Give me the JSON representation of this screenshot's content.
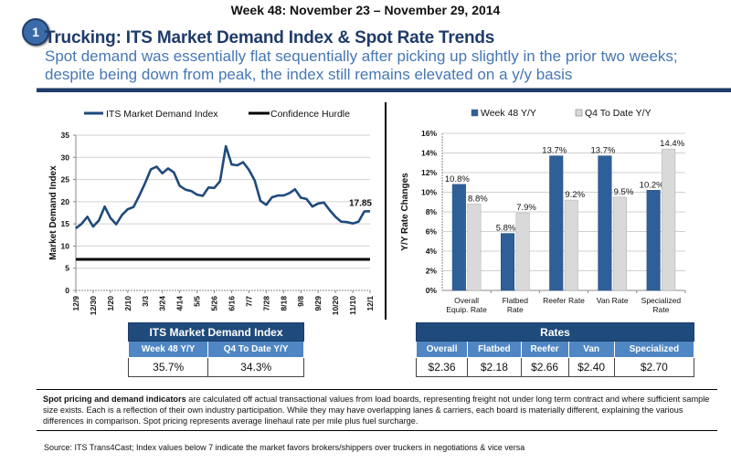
{
  "header": {
    "week": "Week 48: November 23 – November 29, 2014",
    "badge": "1",
    "title": "Trucking: ITS Market Demand Index & Spot Rate Trends",
    "subtitle": "Spot demand was essentially flat sequentially after picking up slightly in the prior two weeks; despite being down from peak, the index still remains elevated on a y/y basis"
  },
  "chart_data": [
    {
      "type": "line",
      "title": "",
      "xlabel": "",
      "ylabel": "Market Demand Index",
      "ylim": [
        0,
        35
      ],
      "yticks": [
        0,
        5,
        10,
        15,
        20,
        25,
        30,
        35
      ],
      "grid": true,
      "legend": "top",
      "x_tick_labels": [
        "12/9",
        "12/30",
        "1/20",
        "2/10",
        "3/3",
        "3/24",
        "4/14",
        "5/5",
        "5/26",
        "6/16",
        "7/7",
        "7/28",
        "8/18",
        "9/8",
        "9/29",
        "10/20",
        "11/10",
        "12/1"
      ],
      "series": [
        {
          "name": "ITS Market Demand Index",
          "color": "#1f4a7c",
          "values": [
            14.0,
            15.0,
            16.6,
            14.4,
            15.8,
            18.9,
            16.3,
            14.9,
            17.0,
            18.3,
            18.8,
            21.4,
            24.2,
            27.3,
            27.9,
            26.4,
            27.5,
            26.6,
            23.6,
            22.7,
            22.4,
            21.6,
            21.3,
            23.2,
            23.1,
            24.6,
            32.5,
            28.4,
            28.2,
            28.9,
            27.2,
            24.8,
            20.2,
            19.3,
            21.0,
            21.4,
            21.4,
            21.9,
            22.8,
            20.9,
            20.6,
            18.9,
            19.6,
            19.8,
            18.1,
            16.6,
            15.5,
            15.4,
            15.1,
            15.5,
            17.8,
            17.85
          ],
          "last_label": "17.85"
        },
        {
          "name": "Confidence Hurdle",
          "color": "#000000",
          "value": 7
        }
      ]
    },
    {
      "type": "bar",
      "title": "",
      "xlabel": "",
      "ylabel": "Y/Y Rate Changes",
      "ylim": [
        0,
        16
      ],
      "yticks": [
        "0%",
        "2%",
        "4%",
        "6%",
        "8%",
        "10%",
        "12%",
        "14%",
        "16%"
      ],
      "grid": true,
      "legend": "top",
      "categories": [
        "Overall Equip. Rate",
        "Flatbed Rate",
        "Reefer  Rate",
        "Van Rate",
        "Specialized Rate"
      ],
      "category_lines": [
        [
          "Overall",
          "Equip. Rate"
        ],
        [
          "Flatbed",
          "Rate"
        ],
        [
          "Reefer  Rate"
        ],
        [
          "Van Rate"
        ],
        [
          "Specialized",
          "Rate"
        ]
      ],
      "series": [
        {
          "name": "Week 48 Y/Y",
          "color": "#2f5f98",
          "values": [
            10.8,
            5.8,
            13.7,
            13.7,
            10.2
          ],
          "labels": [
            "10.8%",
            "5.8%",
            "13.7%",
            "13.7%",
            "10.2%"
          ]
        },
        {
          "name": "Q4 To Date Y/Y",
          "color": "#d9d9d9",
          "values": [
            8.8,
            7.9,
            9.2,
            9.5,
            14.4
          ],
          "labels": [
            "8.8%",
            "7.9%",
            "9.2%",
            "9.5%",
            "14.4%"
          ]
        }
      ]
    }
  ],
  "demand_table": {
    "title": "ITS Market Demand Index",
    "headers": [
      "Week 48 Y/Y",
      "Q4 To Date Y/Y"
    ],
    "values": [
      "35.7%",
      "34.3%"
    ]
  },
  "rates_table": {
    "title": "Rates",
    "headers": [
      "Overall",
      "Flatbed",
      "Reefer",
      "Van",
      "Specialized"
    ],
    "values": [
      "$2.36",
      "$2.18",
      "$2.66",
      "$2.40",
      "$2.70"
    ]
  },
  "note": {
    "bold": "Spot pricing and demand indicators",
    "text": " are calculated off actual transactional  values from load boards, representing freight not under long term contract and where sufficient sample size exists. Each is a reflection of their own industry participation. While they may have overlapping lanes & carriers, each board is materially different, explaining the various differences in comparison. Spot pricing represents average linehaul rate per mile plus fuel surcharge."
  },
  "source": "Source: ITS Trans4Cast; Index values below 7 indicate the market favors brokers/shippers over truckers in negotiations & vice versa"
}
